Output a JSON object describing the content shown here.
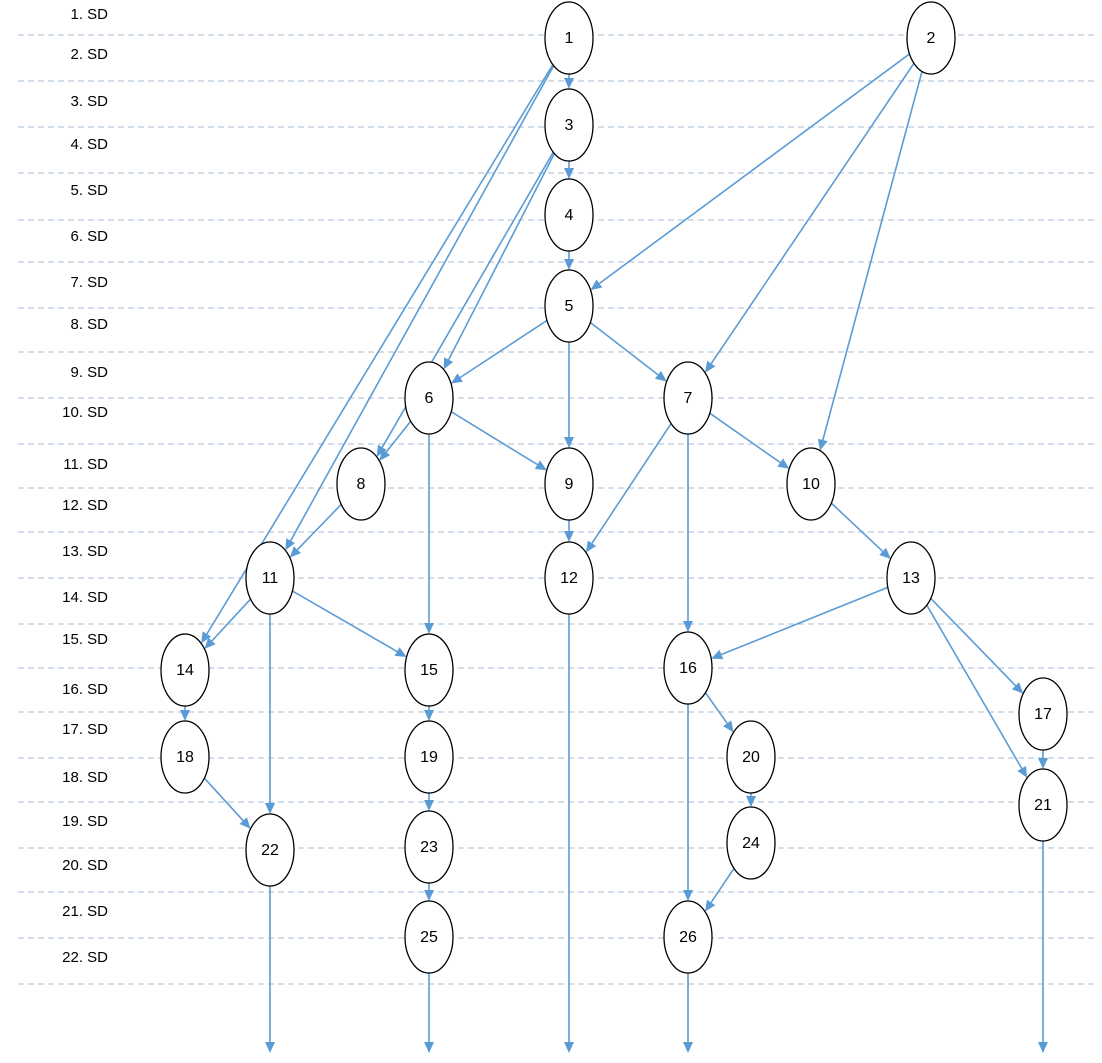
{
  "rows": [
    "1. SD",
    "2. SD",
    "3. SD",
    "4. SD",
    "5. SD",
    "6. SD",
    "7. SD",
    "8. SD",
    "9. SD",
    "10. SD",
    "11. SD",
    "12. SD",
    "13. SD",
    "14. SD",
    "15. SD",
    "16. SD",
    "17. SD",
    "18. SD",
    "19. SD",
    "20. SD",
    "21. SD",
    "22. SD"
  ],
  "nodes": [
    "1",
    "2",
    "3",
    "4",
    "5",
    "6",
    "7",
    "8",
    "9",
    "10",
    "11",
    "12",
    "13",
    "14",
    "15",
    "16",
    "17",
    "18",
    "19",
    "20",
    "21",
    "22",
    "23",
    "24",
    "25",
    "26"
  ],
  "edges": [
    [
      "1",
      "3"
    ],
    [
      "1",
      "11"
    ],
    [
      "1",
      "14"
    ],
    [
      "2",
      "5"
    ],
    [
      "2",
      "7"
    ],
    [
      "2",
      "10"
    ],
    [
      "3",
      "4"
    ],
    [
      "3",
      "6"
    ],
    [
      "3",
      "8"
    ],
    [
      "4",
      "5"
    ],
    [
      "5",
      "6"
    ],
    [
      "5",
      "9"
    ],
    [
      "5",
      "7"
    ],
    [
      "6",
      "8"
    ],
    [
      "6",
      "9"
    ],
    [
      "6",
      "15"
    ],
    [
      "7",
      "12"
    ],
    [
      "7",
      "16"
    ],
    [
      "7",
      "10"
    ],
    [
      "8",
      "11"
    ],
    [
      "9",
      "12"
    ],
    [
      "10",
      "13"
    ],
    [
      "11",
      "14"
    ],
    [
      "11",
      "22"
    ],
    [
      "11",
      "15"
    ],
    [
      "13",
      "16"
    ],
    [
      "13",
      "21"
    ],
    [
      "13",
      "17"
    ],
    [
      "14",
      "18"
    ],
    [
      "15",
      "19"
    ],
    [
      "16",
      "20"
    ],
    [
      "16",
      "26"
    ],
    [
      "17",
      "21"
    ],
    [
      "18",
      "22"
    ],
    [
      "19",
      "23"
    ],
    [
      "20",
      "24"
    ],
    [
      "23",
      "25"
    ],
    [
      "24",
      "26"
    ]
  ],
  "exits": [
    "22",
    "25",
    "12",
    "26",
    "21"
  ],
  "colors": {
    "edge": "#5b9bd5",
    "grid": "#a9bed6",
    "node_stroke": "#000000"
  }
}
